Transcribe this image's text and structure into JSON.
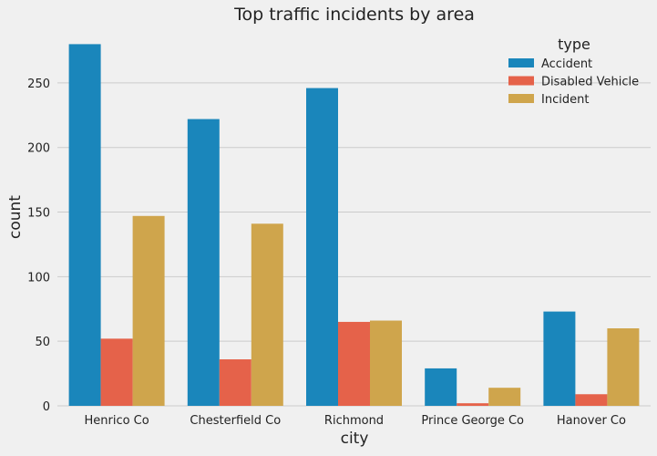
{
  "chart_data": {
    "type": "bar",
    "title": "Top traffic incidents by area",
    "xlabel": "city",
    "ylabel": "count",
    "categories": [
      "Henrico Co",
      "Chesterfield Co",
      "Richmond",
      "Prince George Co",
      "Hanover Co"
    ],
    "series": [
      {
        "name": "Accident",
        "color": "#1a86bb",
        "values": [
          280,
          222,
          246,
          29,
          73
        ]
      },
      {
        "name": "Disabled Vehicle",
        "color": "#e5624a",
        "values": [
          52,
          36,
          65,
          2,
          9
        ]
      },
      {
        "name": "Incident",
        "color": "#cfa54c",
        "values": [
          147,
          141,
          66,
          14,
          60
        ]
      }
    ],
    "ylim": [
      0,
      293
    ],
    "yticks": [
      0,
      50,
      100,
      150,
      200,
      250
    ],
    "grid": true,
    "legend": {
      "title": "type",
      "placement": "top-right"
    }
  }
}
